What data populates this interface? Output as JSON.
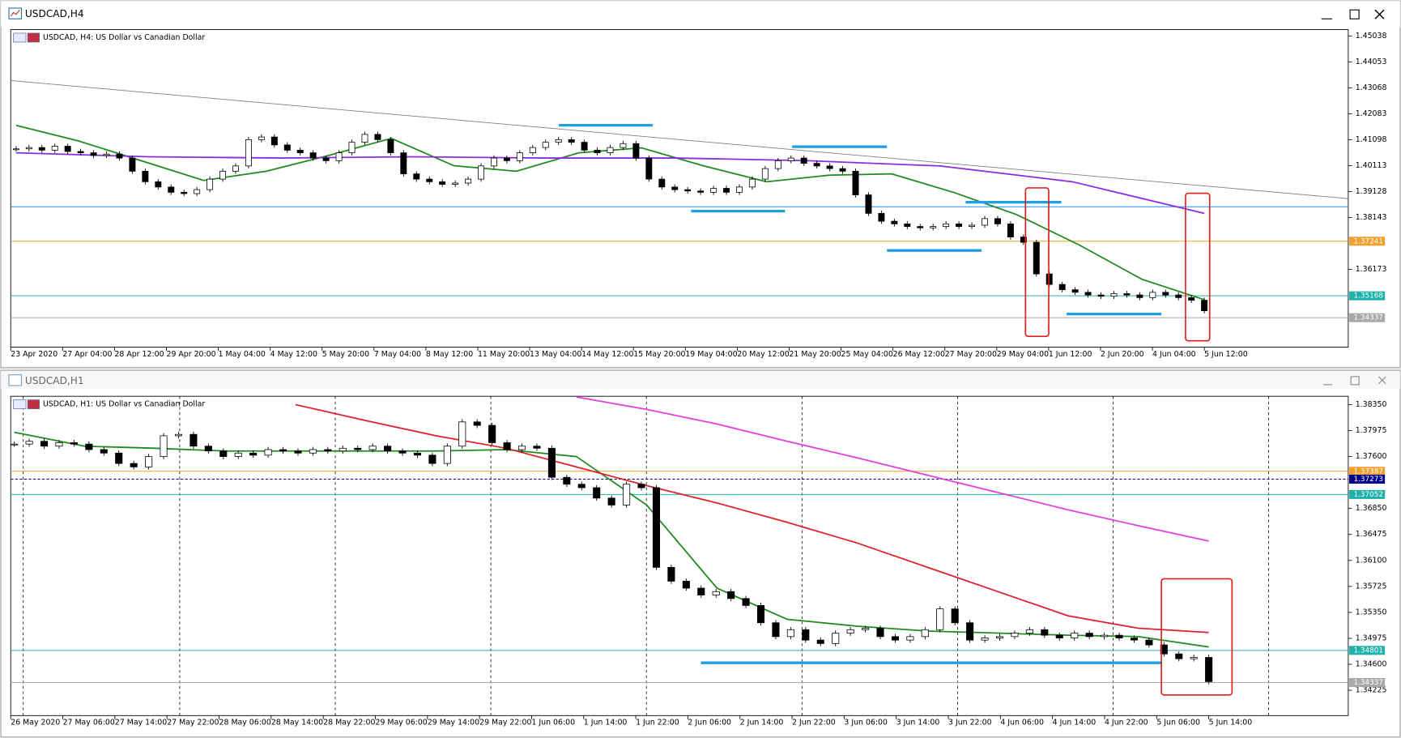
{
  "windows": [
    {
      "title": "USDCAD,H4"
    },
    {
      "title": "USDCAD,H1"
    }
  ],
  "chart_data": [
    {
      "type": "candlestick",
      "label": "USDCAD, H4: US Dollar vs Canadian Dollar",
      "ylim": [
        1.3322,
        1.4528
      ],
      "yticks": [
        1.45038,
        1.44053,
        1.43068,
        1.42083,
        1.41098,
        1.40113,
        1.39128,
        1.38143,
        1.36173
      ],
      "xtick_labels": [
        "23 Apr 2020",
        "27 Apr 04:00",
        "28 Apr 12:00",
        "29 Apr 20:00",
        "1 May 04:00",
        "4 May 12:00",
        "5 May 20:00",
        "7 May 04:00",
        "8 May 12:00",
        "11 May 20:00",
        "13 May 04:00",
        "14 May 12:00",
        "15 May 20:00",
        "19 May 04:00",
        "20 May 12:00",
        "21 May 20:00",
        "25 May 04:00",
        "26 May 12:00",
        "27 May 20:00",
        "29 May 04:00",
        "1 Jun 12:00",
        "2 Jun 20:00",
        "4 Jun 04:00",
        "5 Jun 12:00"
      ],
      "closes": [
        1.4075,
        1.408,
        1.407,
        1.4085,
        1.4065,
        1.406,
        1.405,
        1.4055,
        1.404,
        1.399,
        1.395,
        1.393,
        1.391,
        1.3905,
        1.392,
        1.396,
        1.399,
        1.401,
        1.411,
        1.412,
        1.409,
        1.407,
        1.406,
        1.404,
        1.403,
        1.406,
        1.41,
        1.413,
        1.411,
        1.406,
        1.398,
        1.396,
        1.395,
        1.394,
        1.3945,
        1.396,
        1.401,
        1.404,
        1.403,
        1.406,
        1.408,
        1.41,
        1.411,
        1.41,
        1.407,
        1.406,
        1.408,
        1.4095,
        1.404,
        1.396,
        1.393,
        1.392,
        1.3915,
        1.391,
        1.3925,
        1.391,
        1.393,
        1.396,
        1.4,
        1.403,
        1.404,
        1.402,
        1.401,
        1.4,
        1.399,
        1.39,
        1.383,
        1.38,
        1.379,
        1.378,
        1.3775,
        1.378,
        1.379,
        1.378,
        1.3785,
        1.381,
        1.379,
        1.374,
        1.372,
        1.36,
        1.356,
        1.354,
        1.353,
        1.352,
        1.3515,
        1.3525,
        1.352,
        1.351,
        1.353,
        1.352,
        1.351,
        1.35,
        1.346
      ],
      "lines": [
        {
          "color": "#1f8a1f",
          "values": [
            1.4164,
            1.4105,
            1.403,
            1.3955,
            1.399,
            1.405,
            1.4115,
            1.4011,
            1.399,
            1.406,
            1.4079,
            1.401,
            1.395,
            1.3975,
            1.398,
            1.3909,
            1.3825,
            1.371,
            1.358,
            1.3502
          ]
        },
        {
          "color": "#8a2be2",
          "values": [
            1.406,
            1.4045,
            1.404,
            1.4045,
            1.404,
            1.404,
            1.403,
            1.401,
            1.395,
            1.383
          ]
        }
      ],
      "levels": [
        {
          "value": 1.3855,
          "color": "#1e90ff",
          "style": "solid",
          "label_box": false
        },
        {
          "value": 1.37241,
          "color": "#f0a030",
          "style": "solid",
          "label_box": true
        },
        {
          "value": 1.35168,
          "color": "#20b2aa",
          "style": "solid",
          "label_box": true
        },
        {
          "value": 1.34337,
          "color": "#a9a9a9",
          "style": "solid",
          "label_box": true
        }
      ]
    },
    {
      "type": "candlestick",
      "label": "USDCAD, H1: US Dollar vs Canadian Dollar",
      "ylim": [
        1.3386,
        1.3847
      ],
      "yticks": [
        {
          "value": 1.3835,
          "label": "1.38350"
        },
        1.37975,
        {
          "value": 1.376,
          "label": "1.37600"
        },
        {
          "value": 1.3685,
          "label": "1.36850"
        },
        1.36475,
        {
          "value": 1.361,
          "label": "1.36100"
        },
        1.35725,
        {
          "value": 1.3535,
          "label": "1.35350"
        },
        1.34975,
        {
          "value": 1.346,
          "label": "1.34600"
        },
        1.34225
      ],
      "xtick_labels": [
        "26 May 2020",
        "27 May 06:00",
        "27 May 14:00",
        "27 May 22:00",
        "28 May 06:00",
        "28 May 14:00",
        "28 May 22:00",
        "29 May 06:00",
        "29 May 14:00",
        "29 May 22:00",
        "1 Jun 06:00",
        "1 Jun 14:00",
        "1 Jun 22:00",
        "2 Jun 06:00",
        "2 Jun 14:00",
        "2 Jun 22:00",
        "3 Jun 06:00",
        "3 Jun 14:00",
        "3 Jun 22:00",
        "4 Jun 06:00",
        "4 Jun 14:00",
        "4 Jun 22:00",
        "5 Jun 06:00",
        "5 Jun 14:00"
      ],
      "closes": [
        1.3778,
        1.3782,
        1.3775,
        1.378,
        1.3778,
        1.377,
        1.3765,
        1.375,
        1.3745,
        1.376,
        1.379,
        1.3792,
        1.3775,
        1.3768,
        1.376,
        1.3765,
        1.3762,
        1.377,
        1.3768,
        1.3765,
        1.377,
        1.3768,
        1.3772,
        1.377,
        1.3775,
        1.3768,
        1.3765,
        1.3762,
        1.375,
        1.3775,
        1.381,
        1.3805,
        1.378,
        1.377,
        1.3775,
        1.3772,
        1.373,
        1.372,
        1.3715,
        1.37,
        1.369,
        1.372,
        1.3715,
        1.36,
        1.358,
        1.357,
        1.356,
        1.3565,
        1.3555,
        1.3545,
        1.352,
        1.35,
        1.351,
        1.3495,
        1.349,
        1.3505,
        1.351,
        1.3512,
        1.35,
        1.3495,
        1.35,
        1.351,
        1.354,
        1.352,
        1.3495,
        1.3498,
        1.35,
        1.3505,
        1.351,
        1.3502,
        1.3498,
        1.3505,
        1.35,
        1.3502,
        1.3498,
        1.3495,
        1.3488,
        1.3475,
        1.3468,
        1.347,
        1.3435
      ],
      "lines": [
        {
          "color": "#1f8a1f",
          "values": [
            1.3795,
            1.3775,
            1.3772,
            1.3768,
            1.3768,
            1.3768,
            1.3768,
            1.377,
            1.376,
            1.369,
            1.357,
            1.3525,
            1.3515,
            1.3508,
            1.3505,
            1.3502,
            1.35,
            1.3485
          ]
        },
        {
          "color": "#e0202a",
          "values": [
            null,
            null,
            null,
            null,
            1.3835,
            1.3812,
            1.379,
            1.3772,
            1.3745,
            1.3718,
            1.3693,
            1.3665,
            1.3635,
            1.36,
            1.3565,
            1.353,
            1.3512,
            1.3506
          ]
        },
        {
          "color": "#e040e0",
          "values": [
            null,
            null,
            null,
            null,
            null,
            null,
            null,
            null,
            1.3846,
            1.3828,
            1.3807,
            1.3782,
            1.3758,
            1.3733,
            1.3708,
            1.3683,
            1.366,
            1.3638
          ]
        }
      ],
      "levels": [
        {
          "value": 1.37387,
          "color": "#f0a030",
          "style": "solid",
          "label_box": true
        },
        {
          "value": 1.37273,
          "color": "#00008b",
          "style": "dashed",
          "label_box": true
        },
        {
          "value": 1.37052,
          "color": "#20b2aa",
          "style": "solid",
          "label_box": true
        },
        {
          "value": 1.34801,
          "color": "#20b2aa",
          "style": "solid",
          "label_box": true
        },
        {
          "value": 1.34337,
          "color": "#a9a9a9",
          "style": "solid",
          "label_box": true
        }
      ]
    }
  ]
}
